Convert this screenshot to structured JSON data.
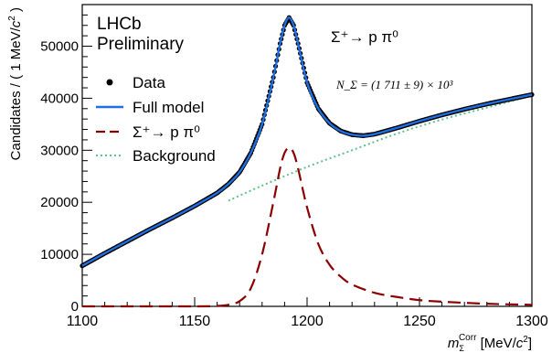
{
  "chart_data": {
    "type": "line",
    "title": "",
    "xlabel": "m_Σ^Corr [MeV/c²]",
    "ylabel": "Candidates / ( 1 MeV/c² )",
    "xlim": [
      1100,
      1300
    ],
    "ylim": [
      0,
      58000
    ],
    "x_ticks": [
      1100,
      1150,
      1200,
      1250,
      1300
    ],
    "x_tick_labels": [
      "1100",
      "1150",
      "1200",
      "1250",
      "1300"
    ],
    "y_ticks": [
      0,
      10000,
      20000,
      30000,
      40000,
      50000
    ],
    "y_tick_labels": [
      "0",
      "10000",
      "20000",
      "30000",
      "40000",
      "50000"
    ],
    "annotations": {
      "experiment": "LHCb",
      "status": "Preliminary",
      "decay": "Σ⁺→ p π⁰",
      "yield": "N_Σ = (1 711 ± 9) × 10³"
    },
    "legend": {
      "placement": "top-left",
      "entries": [
        {
          "label": "Data",
          "style": "points",
          "color": "#000000"
        },
        {
          "label": "Full model",
          "style": "solid",
          "color": "#1f6fe0"
        },
        {
          "label": "Σ⁺→ p π⁰",
          "style": "dashed",
          "color": "#8b0000"
        },
        {
          "label": "Background",
          "style": "dotted",
          "color": "#5fc08a"
        }
      ]
    },
    "series": [
      {
        "name": "Full model",
        "style": "solid",
        "color": "#1f6fe0",
        "x": [
          1100,
          1110,
          1120,
          1130,
          1140,
          1150,
          1160,
          1165,
          1170,
          1175,
          1180,
          1185,
          1188,
          1190,
          1192,
          1194,
          1196,
          1200,
          1205,
          1210,
          1215,
          1220,
          1225,
          1230,
          1240,
          1250,
          1260,
          1270,
          1280,
          1290,
          1300
        ],
        "y": [
          7800,
          10200,
          12500,
          14800,
          17000,
          19300,
          21800,
          23500,
          25800,
          29500,
          35000,
          44000,
          50500,
          54000,
          55500,
          54000,
          50500,
          43000,
          38000,
          35200,
          33700,
          33000,
          32800,
          33100,
          34300,
          35600,
          36800,
          37900,
          38900,
          39800,
          40700
        ]
      },
      {
        "name": "Σ⁺→ p π⁰",
        "style": "dashed",
        "color": "#8b0000",
        "x": [
          1100,
          1150,
          1160,
          1165,
          1170,
          1175,
          1180,
          1185,
          1188,
          1190,
          1192,
          1194,
          1196,
          1200,
          1205,
          1210,
          1215,
          1220,
          1230,
          1240,
          1250,
          1260,
          1280,
          1300
        ],
        "y": [
          0,
          0,
          80,
          300,
          1000,
          3500,
          10000,
          20000,
          26500,
          29500,
          30500,
          29500,
          26500,
          19000,
          12000,
          8000,
          5700,
          4200,
          2600,
          1800,
          1200,
          900,
          500,
          300
        ]
      },
      {
        "name": "Background",
        "style": "dotted",
        "color": "#5fc08a",
        "x": [
          1165,
          1180,
          1200,
          1220,
          1240,
          1260,
          1280,
          1300
        ],
        "y": [
          20300,
          23200,
          26800,
          30000,
          33200,
          35900,
          38200,
          40500
        ]
      },
      {
        "name": "Data",
        "style": "points",
        "color": "#000000",
        "x": [
          1100,
          1110,
          1120,
          1130,
          1140,
          1150,
          1160,
          1165,
          1170,
          1175,
          1180,
          1185,
          1188,
          1190,
          1192,
          1194,
          1196,
          1200,
          1205,
          1210,
          1215,
          1220,
          1225,
          1230,
          1240,
          1250,
          1260,
          1270,
          1280,
          1290,
          1300
        ],
        "y": [
          7800,
          10200,
          12500,
          14800,
          17000,
          19300,
          21800,
          23500,
          25800,
          29500,
          35000,
          44000,
          50500,
          54000,
          55500,
          54000,
          50500,
          43000,
          38000,
          35200,
          33700,
          33000,
          32800,
          33100,
          34300,
          35600,
          36800,
          37900,
          38900,
          39800,
          40700
        ]
      }
    ]
  }
}
